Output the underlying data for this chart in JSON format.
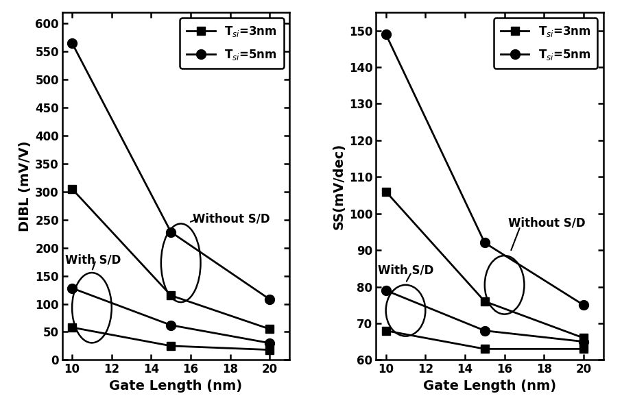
{
  "x": [
    10,
    15,
    20
  ],
  "dibl_noSD_3nm": [
    305,
    115,
    55
  ],
  "dibl_noSD_5nm": [
    565,
    228,
    108
  ],
  "dibl_SD_3nm": [
    58,
    25,
    18
  ],
  "dibl_SD_5nm": [
    128,
    62,
    30
  ],
  "ss_noSD_3nm": [
    106,
    76,
    66
  ],
  "ss_noSD_5nm": [
    149,
    92,
    75
  ],
  "ss_SD_3nm": [
    68,
    63,
    63
  ],
  "ss_SD_5nm": [
    79,
    68,
    65
  ],
  "dibl_ylim": [
    0,
    620
  ],
  "dibl_yticks": [
    0,
    50,
    100,
    150,
    200,
    250,
    300,
    350,
    400,
    450,
    500,
    550,
    600
  ],
  "ss_ylim": [
    60,
    155
  ],
  "ss_yticks": [
    60,
    70,
    80,
    90,
    100,
    110,
    120,
    130,
    140,
    150
  ],
  "xlim": [
    9.5,
    21
  ],
  "xticks": [
    10,
    12,
    14,
    16,
    18,
    20
  ],
  "xlabel": "Gate Length (nm)",
  "dibl_ylabel": "DIBL (mV/V)",
  "ss_ylabel": "SS(mV/dec)",
  "line_color": "#000000",
  "marker_square": "s",
  "marker_circle": "o",
  "marker_size": 9,
  "linewidth": 2.0,
  "legend_label_3nm": "T$_{si}$=3nm",
  "legend_label_5nm": "T$_{si}$=5nm"
}
